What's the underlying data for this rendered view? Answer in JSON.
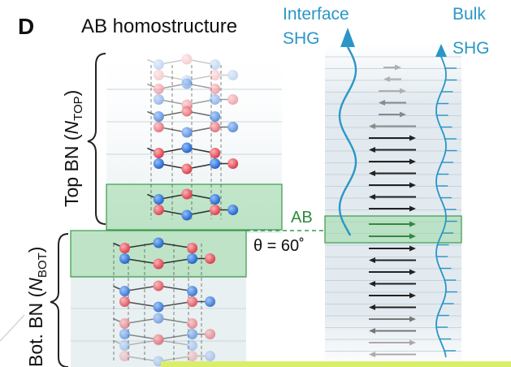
{
  "panel": {
    "letter": "D",
    "title": "AB homostructure"
  },
  "labels": {
    "top_bn_main": "Top BN (",
    "top_bn_n": "N",
    "top_bn_sub": "TOP",
    "top_bn_close": ")",
    "bot_bn_main": "Bot. BN (",
    "bot_bn_n": "N",
    "bot_bn_sub": "BOT",
    "bot_bn_close": ")",
    "stacking": "AB",
    "angle": "θ = 60˚",
    "interface_line1": "Interface",
    "interface_line2": "SHG",
    "bulk_line1": "Bulk",
    "bulk_line2": "SHG"
  },
  "colors": {
    "boron": "#e0505a",
    "nitrogen": "#2f6fd0",
    "interface_green": "#3a9a4a",
    "green_fill": "#9bd8a4",
    "shg_blue": "#2a96c8",
    "dipole_black": "#222222",
    "dipole_gray": "#9a9a9a",
    "column_bg": "#dfe8ee",
    "callout_yellow": "#d9ef6a"
  },
  "icons": {
    "top_brace": "curly-brace-icon",
    "bottom_brace": "curly-brace-icon",
    "interface_arrow": "arrow-up-icon",
    "bulk_arrow": "arrow-up-icon"
  }
}
